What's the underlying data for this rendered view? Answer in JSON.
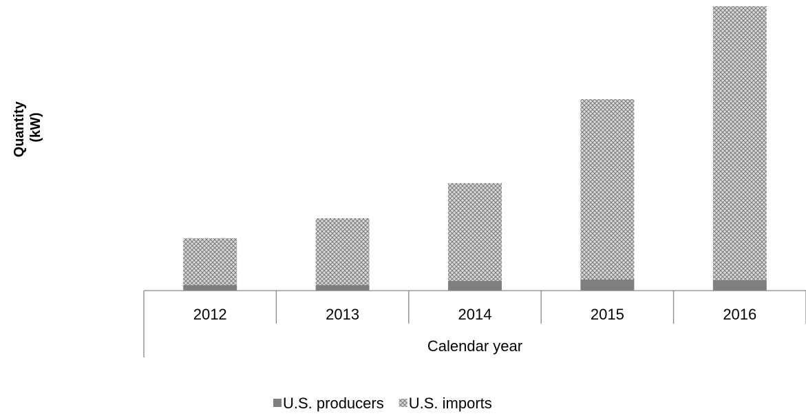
{
  "chart_data": {
    "type": "bar",
    "stacked": true,
    "title": "",
    "xlabel": "Calendar year",
    "ylabel_lines": [
      "Quantity",
      "(kW)"
    ],
    "categories": [
      "2012",
      "2013",
      "2014",
      "2015",
      "2016"
    ],
    "series": [
      {
        "name": "U.S. producers",
        "values": [
          8,
          8,
          14,
          16,
          15
        ],
        "color": "#7f7f7f",
        "pattern": "solid"
      },
      {
        "name": "U.S. imports",
        "values": [
          68,
          97,
          142,
          262,
          398
        ],
        "color": "#a6a6a6",
        "pattern": "crosshatch"
      }
    ],
    "ylim": [
      0,
      413
    ],
    "y_axis_visible": false,
    "grid": false,
    "legend_position": "bottom"
  }
}
